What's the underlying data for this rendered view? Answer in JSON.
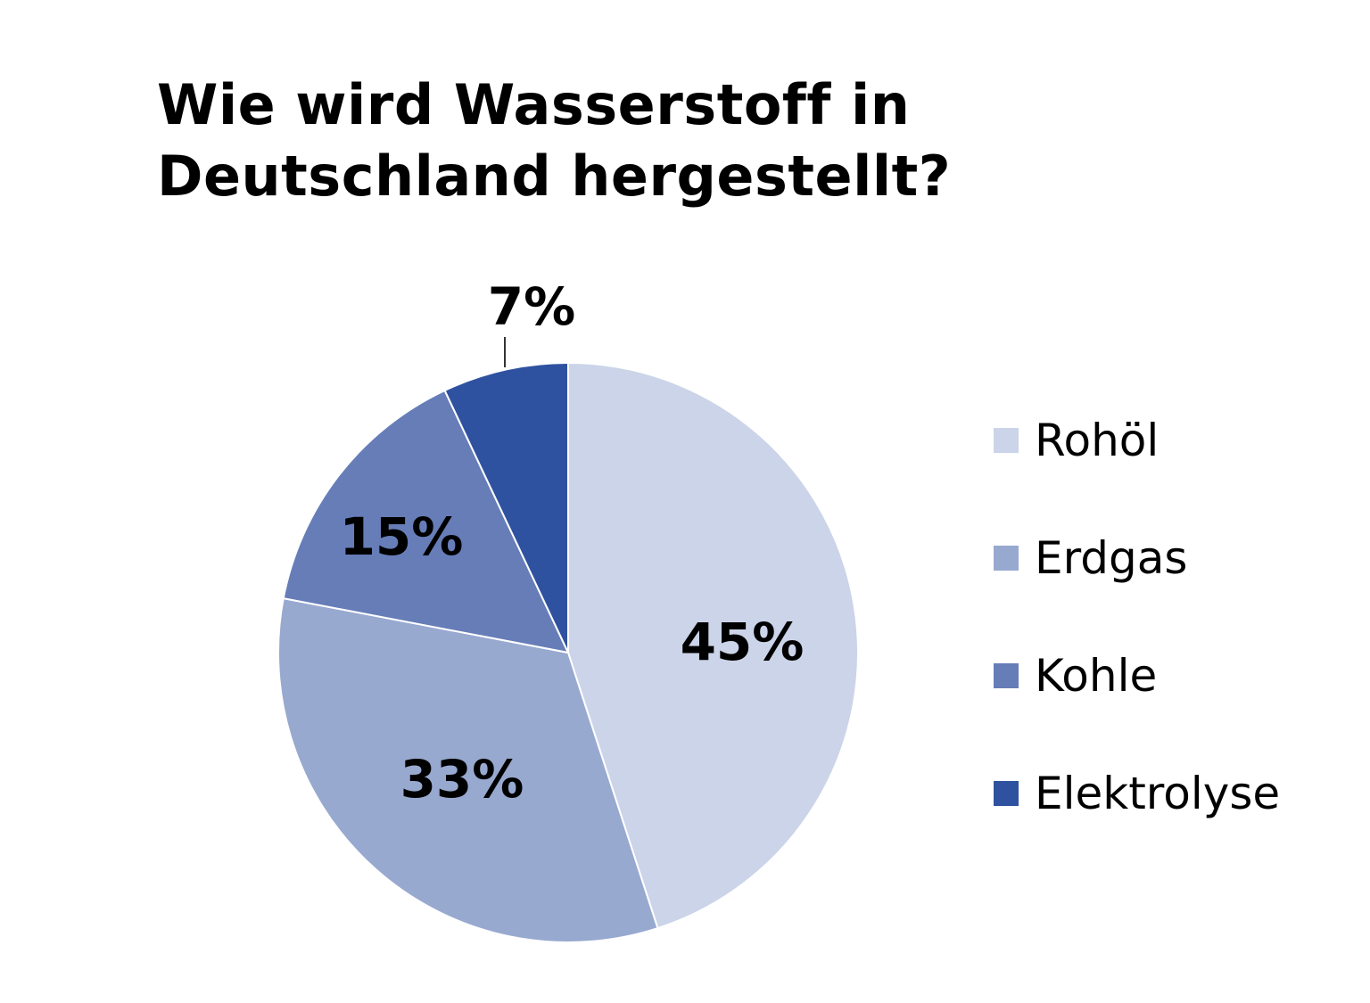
{
  "title": "Wie wird Wasserstoff in Deutschland hergestellt?",
  "title_lines": [
    "Wie wird Wasserstoff in",
    "Deutschland hergestellt?"
  ],
  "chart_data": {
    "type": "pie",
    "title": "Wie wird Wasserstoff in Deutschland hergestellt?",
    "categories": [
      "Rohöl",
      "Erdgas",
      "Kohle",
      "Elektrolyse"
    ],
    "values": [
      45,
      33,
      15,
      7
    ],
    "unit": "%",
    "colors": [
      "#CBD4E8",
      "#98A9D0",
      "#667DB8",
      "#2F52A0"
    ],
    "data_labels": [
      "45%",
      "33%",
      "15%",
      "7%"
    ],
    "legend_position": "right",
    "start_angle": "12 o'clock, clockwise"
  },
  "legend": {
    "items": [
      {
        "label": "Rohöl",
        "color": "#CBD4E8"
      },
      {
        "label": "Erdgas",
        "color": "#98A9D0"
      },
      {
        "label": "Kohle",
        "color": "#667DB8"
      },
      {
        "label": "Elektrolyse",
        "color": "#2F52A0"
      }
    ]
  },
  "labels": {
    "rohoel": "45%",
    "erdgas": "33%",
    "kohle": "15%",
    "elektrolyse": "7%"
  }
}
